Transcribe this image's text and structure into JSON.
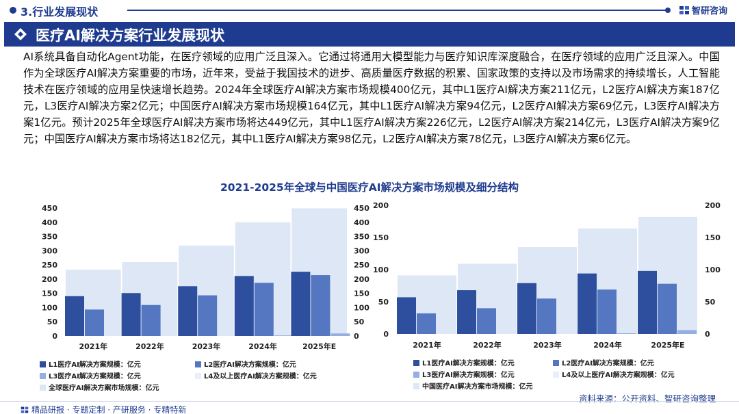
{
  "header": {
    "section_label": "3.行业发展现状",
    "brand_name": "智研咨询",
    "title": "医疗AI解决方案行业发展现状"
  },
  "intro_text": "AI系统具备自动化Agent功能，在医疗领域的应用广泛且深入。它通过将通用大模型能力与医疗知识库深度融合，在医疗领域的应用广泛且深入。中国作为全球医疗AI解决方案重要的市场，近年来，受益于我国技术的进步、高质量医疗数据的积累、国家政策的支持以及市场需求的持续增长，人工智能技术在医疗领域的应用呈快速增长趋势。2024年全球医疗AI解决方案市场规模400亿元，其中L1医疗AI解决方案211亿元，L2医疗AI解决方案187亿元，L3医疗AI解决方案2亿元；中国医疗AI解决方案市场规模164亿元，其中L1医疗AI解决方案94亿元，L2医疗AI解决方案69亿元，L3医疗AI解决方案1亿元。预计2025年全球医疗AI解决方案市场将达449亿元，其中L1医疗AI解决方案226亿元，L2医疗AI解决方案214亿元，L3医疗AI解决方案9亿元；中国医疗AI解决方案市场将达182亿元，其中L1医疗AI解决方案98亿元，L2医疗AI解决方案78亿元，L3医疗AI解决方案6亿元。",
  "colors": {
    "brand": "#1f3b8f",
    "l1": "#2e4f9e",
    "l2": "#5577c2",
    "l3": "#94afe0",
    "l4": "#e8eefa",
    "total": "#dde7f6"
  },
  "footer": {
    "source": "资料来源：公开资料、智研咨询整理",
    "tagline": "精品研报 · 专题定制 · 产研服务 · 专精特新"
  },
  "chart_data": [
    {
      "type": "bar",
      "title": "2021-2025年全球与中国医疗AI解决方案市场规模及细分结构",
      "region": "global",
      "categories": [
        "2021年",
        "2022年",
        "2023年",
        "2024年",
        "2025年E"
      ],
      "ylim": [
        0,
        450
      ],
      "yticks": [
        0,
        50,
        100,
        150,
        200,
        250,
        300,
        350,
        400,
        450
      ],
      "series": [
        {
          "name": "全球医疗AI解决方案市场规模：亿元",
          "key": "total",
          "values": [
            233,
            260,
            318,
            400,
            449
          ]
        },
        {
          "name": "L1医疗AI解决方案规模：亿元",
          "key": "l1",
          "values": [
            140,
            151,
            175,
            211,
            226
          ]
        },
        {
          "name": "L2医疗AI解决方案规模：亿元",
          "key": "l2",
          "values": [
            93,
            109,
            143,
            187,
            214
          ]
        },
        {
          "name": "L3医疗AI解决方案规模：亿元",
          "key": "l3",
          "values": [
            0,
            0,
            0,
            2,
            9
          ]
        },
        {
          "name": "L4及以上医疗AI解决方案规模：亿元",
          "key": "l4",
          "values": [
            0,
            0,
            0,
            0,
            0
          ]
        }
      ]
    },
    {
      "type": "bar",
      "region": "china",
      "categories": [
        "2021年",
        "2022年",
        "2023年",
        "2024年",
        "2025年E"
      ],
      "ylim": [
        0,
        200
      ],
      "yticks": [
        0,
        50,
        100,
        150,
        200
      ],
      "series": [
        {
          "name": "中国医疗AI解决方案市场规模：亿元",
          "key": "total",
          "values": [
            91,
            109,
            135,
            164,
            182
          ]
        },
        {
          "name": "L1医疗AI解决方案规模：亿元",
          "key": "l1",
          "values": [
            57,
            68,
            79,
            94,
            98
          ]
        },
        {
          "name": "L2医疗AI解决方案规模：亿元",
          "key": "l2",
          "values": [
            32,
            40,
            55,
            69,
            78
          ]
        },
        {
          "name": "L3医疗AI解决方案规模：亿元",
          "key": "l3",
          "values": [
            0,
            0,
            0,
            1,
            6
          ]
        },
        {
          "name": "L4及以上医疗AI解决方案规模：亿元",
          "key": "l4",
          "values": [
            0,
            0,
            0,
            0,
            0
          ]
        }
      ]
    }
  ]
}
